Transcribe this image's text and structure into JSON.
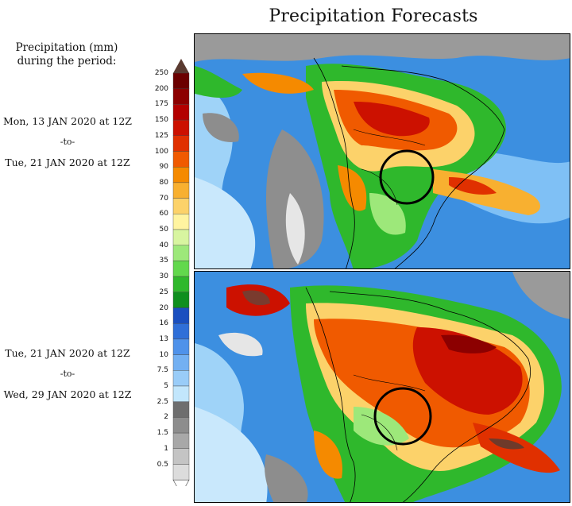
{
  "title": "Precipitation Forecasts",
  "legend_heading": [
    "Precipitation (mm)",
    "during the period:"
  ],
  "periods": [
    {
      "start": "Mon, 13 JAN 2020 at 12Z",
      "sep": "-to-",
      "end": "Tue, 21 JAN 2020 at 12Z"
    },
    {
      "start": "Tue, 21 JAN 2020 at 12Z",
      "sep": "-to-",
      "end": "Wed, 29 JAN 2020 at 12Z"
    }
  ],
  "legend_ticks": [
    "250",
    "200",
    "175",
    "150",
    "125",
    "100",
    "90",
    "80",
    "70",
    "60",
    "50",
    "40",
    "35",
    "30",
    "25",
    "20",
    "16",
    "13",
    "10",
    "7.5",
    "5",
    "2.5",
    "2",
    "1.5",
    "1",
    "0.5"
  ],
  "legend_colors": [
    "#6b0000",
    "#8c0000",
    "#b30000",
    "#cc1100",
    "#e03000",
    "#f05a00",
    "#f58a00",
    "#f8b030",
    "#fcd26a",
    "#fff4a0",
    "#d8f5a0",
    "#9de87a",
    "#62d84d",
    "#2fb82c",
    "#0f8f1e",
    "#1a4fbf",
    "#2f6fd8",
    "#4f92ea",
    "#73b0f2",
    "#99ccf8",
    "#c2e6fc",
    "#6e6e6e",
    "#8d8d8d",
    "#a8a8a8",
    "#c4c4c4",
    "#dcdcdc"
  ],
  "colors": {
    "ocean": "#3c8fe0",
    "circle": "#000000"
  }
}
